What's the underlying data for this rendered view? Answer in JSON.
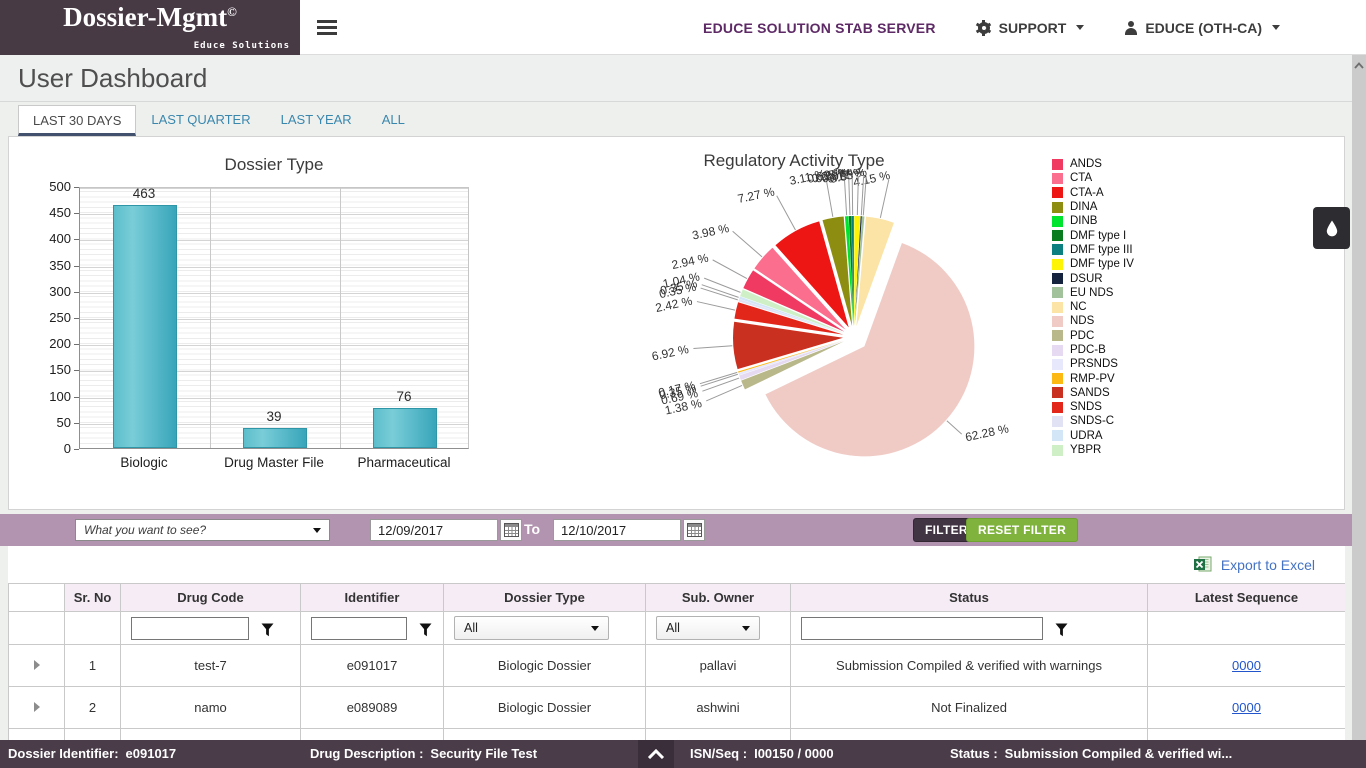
{
  "header": {
    "logo_title": "Dossier-Mgmt",
    "logo_sup": "©",
    "logo_subtitle": "Educe Solutions",
    "server_label": "EDUCE SOLUTION STAB SERVER",
    "support_label": "SUPPORT",
    "user_label": "EDUCE (OTH-CA)"
  },
  "page_title": "User Dashboard",
  "tabs": [
    {
      "label": "LAST 30 DAYS",
      "active": true
    },
    {
      "label": "LAST QUARTER",
      "active": false
    },
    {
      "label": "LAST YEAR",
      "active": false
    },
    {
      "label": "ALL",
      "active": false
    }
  ],
  "chart_data": [
    {
      "type": "bar",
      "title": "Dossier Type",
      "categories": [
        "Biologic",
        "Drug Master File",
        "Pharmaceutical"
      ],
      "values": [
        463,
        39,
        76
      ],
      "xlabel": "",
      "ylabel": "",
      "ylim": [
        0,
        500
      ],
      "ytick_step": 50,
      "grid": true,
      "bar_color": "#45aec0"
    },
    {
      "type": "pie",
      "title": "Regulatory Activity Type",
      "legend_position": "right",
      "label_format": "percent",
      "clockwise_start_label": "NC",
      "start_angle_deg": 5,
      "slices": [
        {
          "label": "ANDS",
          "value_pct": 2.94,
          "color": "#f03a62"
        },
        {
          "label": "CTA",
          "value_pct": 3.98,
          "color": "#fb6e8d"
        },
        {
          "label": "CTA-A",
          "value_pct": 7.27,
          "color": "#ee1515"
        },
        {
          "label": "DINA",
          "value_pct": 3.11,
          "color": "#8d8d12"
        },
        {
          "label": "DINB",
          "value_pct": 0.52,
          "color": "#00e430"
        },
        {
          "label": "DMF type I",
          "value_pct": 0.35,
          "color": "#087c1f"
        },
        {
          "label": "DMF type III",
          "value_pct": 0.35,
          "color": "#0c7f80"
        },
        {
          "label": "DMF type IV",
          "value_pct": 0.87,
          "color": "#fdf505"
        },
        {
          "label": "DSUR",
          "value_pct": 0.17,
          "color": "#15233e"
        },
        {
          "label": "EU NDS",
          "value_pct": 0.35,
          "color": "#a2c29b"
        },
        {
          "label": "NC",
          "value_pct": 4.15,
          "color": "#fce3a6"
        },
        {
          "label": "NDS",
          "value_pct": 62.28,
          "color": "#f0cbc6"
        },
        {
          "label": "PDC",
          "value_pct": 1.38,
          "color": "#b9b88b"
        },
        {
          "label": "PDC-B",
          "value_pct": 0.69,
          "color": "#e5daf1"
        },
        {
          "label": "PRSNDS",
          "value_pct": 0.35,
          "color": "#e7e8fb"
        },
        {
          "label": "RMP-PV",
          "value_pct": 0.17,
          "color": "#fdb913"
        },
        {
          "label": "SANDS",
          "value_pct": 6.92,
          "color": "#c9301f"
        },
        {
          "label": "SNDS",
          "value_pct": 2.42,
          "color": "#e3261a"
        },
        {
          "label": "SNDS-C",
          "value_pct": 0.35,
          "color": "#e1e2f3"
        },
        {
          "label": "UDRA",
          "value_pct": 0.35,
          "color": "#d2e6f8"
        },
        {
          "label": "YBPR",
          "value_pct": 1.04,
          "color": "#cff0c7"
        }
      ]
    }
  ],
  "filter_bar": {
    "dropdown_placeholder": "What you want to see?",
    "date_from": "12/09/2017",
    "to_label": "To",
    "date_to": "12/10/2017",
    "filter_button": "FILTER",
    "reset_button": "RESET FILTER"
  },
  "export": {
    "label": "Export to Excel"
  },
  "table": {
    "columns": [
      "Sr. No",
      "Drug Code",
      "Identifier",
      "Dossier Type",
      "Sub. Owner",
      "Status",
      "Latest Sequence"
    ],
    "filter_row": {
      "dossier_type_value": "All",
      "sub_owner_value": "All"
    },
    "rows": [
      {
        "sr": "1",
        "drug_code": "test-7",
        "identifier": "e091017",
        "dossier_type": "Biologic Dossier",
        "sub_owner": "pallavi",
        "status": "Submission Compiled & verified with warnings",
        "latest_sequence": "0000"
      },
      {
        "sr": "2",
        "drug_code": "namo",
        "identifier": "e089089",
        "dossier_type": "Biologic Dossier",
        "sub_owner": "ashwini",
        "status": "Not Finalized",
        "latest_sequence": "0000"
      }
    ]
  },
  "status_bar": {
    "dossier_identifier_label": "Dossier Identifier:",
    "dossier_identifier_value": "e091017",
    "drug_description_label": "Drug Description :",
    "drug_description_value": "Security File Test",
    "isn_seq_label": "ISN/Seq :",
    "isn_seq_value": "I00150 / 0000",
    "status_label": "Status :",
    "status_value": "Submission Compiled & verified wi..."
  },
  "colors": {
    "accent_dark": "#483a45",
    "filter_bar_bg": "#b394b0",
    "filter_btn_bg": "#423543",
    "reset_btn_bg": "#7fb33e",
    "grid_header_bg": "#f6ecf6",
    "status_bar_bg": "#4a3c48",
    "tab_link": "#3a87ad",
    "link_blue": "#2255cc"
  }
}
